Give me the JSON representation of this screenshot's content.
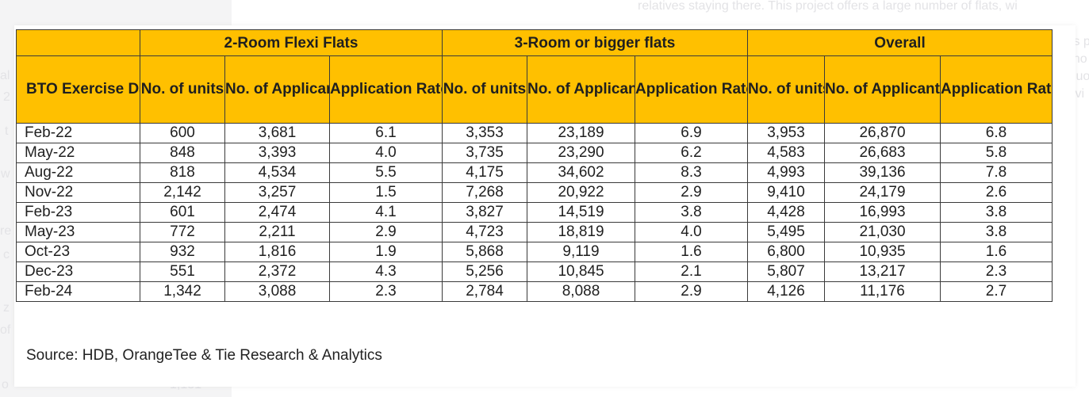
{
  "background_fragments": {
    "top_right": "relatives staying there. This project offers a large number of flats, wi",
    "right_lines": [
      "nis p",
      "cano",
      "ncluo",
      "givi"
    ],
    "left_fragments": [
      "al",
      "2",
      "t",
      "w",
      "re",
      "c",
      "z",
      "of",
      "o"
    ],
    "bottom_number": "1,131"
  },
  "table": {
    "group_headers": [
      "2-Room Flexi Flats",
      "3-Room or bigger flats",
      "Overall"
    ],
    "first_col_header": "BTO Exercise Date",
    "sub_headers": [
      "No. of units",
      "No. of Applicants",
      "Application Rate",
      "No. of units",
      "No. of Applicants",
      "Application Rate",
      "No. of units",
      "No. of Applicants",
      "Application Rate"
    ],
    "rows": [
      [
        "Feb-22",
        "600",
        "3,681",
        "6.1",
        "3,353",
        "23,189",
        "6.9",
        "3,953",
        "26,870",
        "6.8"
      ],
      [
        "May-22",
        "848",
        "3,393",
        "4.0",
        "3,735",
        "23,290",
        "6.2",
        "4,583",
        "26,683",
        "5.8"
      ],
      [
        "Aug-22",
        "818",
        "4,534",
        "5.5",
        "4,175",
        "34,602",
        "8.3",
        "4,993",
        "39,136",
        "7.8"
      ],
      [
        "Nov-22",
        "2,142",
        "3,257",
        "1.5",
        "7,268",
        "20,922",
        "2.9",
        "9,410",
        "24,179",
        "2.6"
      ],
      [
        "Feb-23",
        "601",
        "2,474",
        "4.1",
        "3,827",
        "14,519",
        "3.8",
        "4,428",
        "16,993",
        "3.8"
      ],
      [
        "May-23",
        "772",
        "2,211",
        "2.9",
        "4,723",
        "18,819",
        "4.0",
        "5,495",
        "21,030",
        "3.8"
      ],
      [
        "Oct-23",
        "932",
        "1,816",
        "1.9",
        "5,868",
        "9,119",
        "1.6",
        "6,800",
        "10,935",
        "1.6"
      ],
      [
        "Dec-23",
        "551",
        "2,372",
        "4.3",
        "5,256",
        "10,845",
        "2.1",
        "5,807",
        "13,217",
        "2.3"
      ],
      [
        "Feb-24",
        "1,342",
        "3,088",
        "2.3",
        "2,784",
        "8,088",
        "2.9",
        "4,126",
        "11,176",
        "2.7"
      ]
    ]
  },
  "source": "Source: HDB, OrangeTee & Tie Research & Analytics",
  "colors": {
    "header_fill": "#ffc000",
    "grid": "#3a3a3a",
    "text": "#1f1f1f"
  }
}
